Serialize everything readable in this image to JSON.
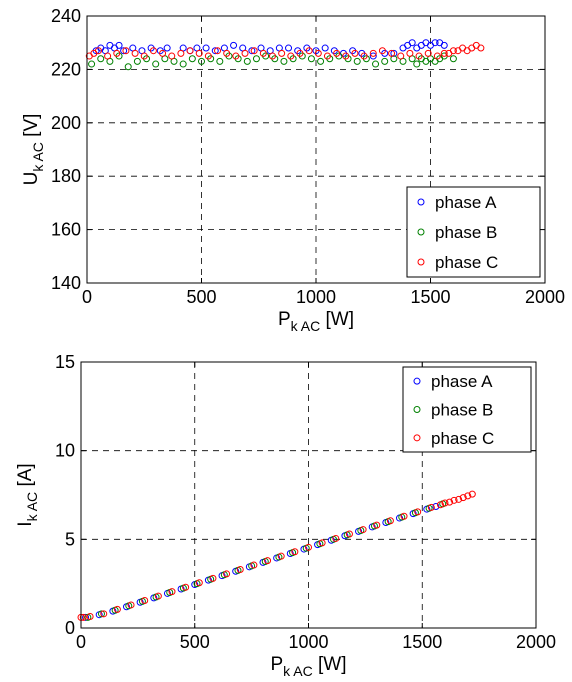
{
  "chart_data": [
    {
      "type": "scatter",
      "title": "",
      "xlabel": {
        "main": "P",
        "sub": "k AC",
        "unit": " [W]"
      },
      "ylabel": {
        "main": "U",
        "sub": "k AC",
        "unit": " [V]"
      },
      "xlim": [
        0,
        2000
      ],
      "ylim": [
        140,
        240
      ],
      "xticks": [
        "0",
        "500",
        "1000",
        "1500",
        "2000"
      ],
      "yticks": [
        "140",
        "160",
        "180",
        "200",
        "220",
        "240"
      ],
      "grid": true,
      "legend_position": "bottom-right",
      "series": [
        {
          "name": "phase A",
          "color": "#0000ff",
          "x": [
            40,
            60,
            80,
            100,
            120,
            140,
            160,
            200,
            240,
            280,
            320,
            350,
            420,
            450,
            480,
            520,
            560,
            600,
            640,
            680,
            720,
            760,
            800,
            840,
            880,
            920,
            960,
            1000,
            1040,
            1080,
            1120,
            1160,
            1200,
            1250,
            1300,
            1340,
            1380,
            1400,
            1420,
            1440,
            1460,
            1480,
            1500,
            1520,
            1540,
            1560
          ],
          "y": [
            227,
            228,
            227,
            229,
            228,
            229,
            227,
            228,
            227,
            228,
            227,
            228,
            228,
            227,
            228,
            228,
            227,
            228,
            229,
            228,
            227,
            228,
            227,
            228,
            228,
            227,
            228,
            227,
            228,
            227,
            226,
            227,
            226,
            225,
            226,
            226,
            228,
            229,
            230,
            228,
            229,
            230,
            229,
            230,
            230,
            229
          ]
        },
        {
          "name": "phase B",
          "color": "#008000",
          "x": [
            20,
            60,
            100,
            140,
            180,
            220,
            260,
            300,
            340,
            380,
            420,
            460,
            500,
            540,
            580,
            620,
            660,
            700,
            740,
            780,
            820,
            860,
            900,
            940,
            980,
            1020,
            1060,
            1100,
            1140,
            1180,
            1220,
            1260,
            1300,
            1340,
            1380,
            1420,
            1440,
            1460,
            1480,
            1500,
            1520,
            1540,
            1560,
            1600
          ],
          "y": [
            222,
            224,
            223,
            225,
            221,
            223,
            224,
            222,
            224,
            223,
            222,
            224,
            223,
            224,
            223,
            225,
            224,
            223,
            224,
            225,
            224,
            223,
            224,
            225,
            224,
            223,
            224,
            225,
            224,
            223,
            224,
            222,
            223,
            224,
            223,
            224,
            222,
            224,
            223,
            224,
            223,
            224,
            225,
            224
          ]
        },
        {
          "name": "phase C",
          "color": "#ff0000",
          "x": [
            10,
            30,
            50,
            90,
            130,
            170,
            210,
            250,
            290,
            330,
            370,
            410,
            450,
            490,
            530,
            570,
            610,
            650,
            690,
            730,
            770,
            810,
            850,
            890,
            930,
            970,
            1010,
            1050,
            1090,
            1130,
            1170,
            1210,
            1250,
            1290,
            1330,
            1370,
            1410,
            1450,
            1490,
            1530,
            1560,
            1580,
            1600,
            1620,
            1640,
            1660,
            1680,
            1700,
            1720
          ],
          "y": [
            225,
            226,
            227,
            225,
            226,
            227,
            226,
            225,
            227,
            226,
            225,
            226,
            227,
            226,
            225,
            227,
            226,
            225,
            226,
            227,
            226,
            225,
            226,
            225,
            226,
            227,
            226,
            225,
            226,
            225,
            226,
            225,
            226,
            227,
            226,
            225,
            226,
            225,
            226,
            225,
            226,
            226,
            227,
            227,
            228,
            227,
            228,
            229,
            228
          ]
        }
      ]
    },
    {
      "type": "scatter",
      "title": "",
      "xlabel": {
        "main": "P",
        "sub": "k AC",
        "unit": " [W]"
      },
      "ylabel": {
        "main": "I",
        "sub": "k AC",
        "unit": " [A]"
      },
      "xlim": [
        0,
        2000
      ],
      "ylim": [
        0,
        15
      ],
      "xticks": [
        "0",
        "500",
        "1000",
        "1500",
        "2000"
      ],
      "yticks": [
        "0",
        "5",
        "10",
        "15"
      ],
      "grid": true,
      "legend_position": "top-right",
      "series": [
        {
          "name": "phase A",
          "color": "#0000ff",
          "x": [
            20,
            80,
            140,
            200,
            260,
            320,
            380,
            440,
            500,
            560,
            620,
            680,
            740,
            800,
            860,
            920,
            980,
            1040,
            1100,
            1160,
            1220,
            1280,
            1340,
            1400,
            1460,
            1520,
            1560
          ],
          "y": [
            0.6,
            0.75,
            0.95,
            1.2,
            1.45,
            1.7,
            1.95,
            2.2,
            2.45,
            2.7,
            2.95,
            3.2,
            3.45,
            3.7,
            3.95,
            4.2,
            4.45,
            4.7,
            4.95,
            5.2,
            5.45,
            5.7,
            5.95,
            6.2,
            6.45,
            6.7,
            6.85
          ]
        },
        {
          "name": "phase B",
          "color": "#008000",
          "x": [
            30,
            90,
            150,
            210,
            270,
            330,
            390,
            450,
            510,
            570,
            630,
            690,
            750,
            810,
            870,
            930,
            990,
            1050,
            1110,
            1170,
            1230,
            1290,
            1350,
            1410,
            1470,
            1530,
            1590
          ],
          "y": [
            0.6,
            0.8,
            1.0,
            1.25,
            1.5,
            1.75,
            2.0,
            2.25,
            2.5,
            2.75,
            3.0,
            3.25,
            3.5,
            3.75,
            4.0,
            4.25,
            4.5,
            4.75,
            5.0,
            5.25,
            5.5,
            5.75,
            6.0,
            6.25,
            6.5,
            6.75,
            7.0
          ]
        },
        {
          "name": "phase C",
          "color": "#ff0000",
          "x": [
            0,
            10,
            40,
            100,
            160,
            220,
            280,
            340,
            400,
            460,
            520,
            580,
            640,
            700,
            760,
            820,
            880,
            940,
            1000,
            1060,
            1120,
            1180,
            1240,
            1300,
            1360,
            1420,
            1480,
            1540,
            1580,
            1600,
            1620,
            1640,
            1660,
            1680,
            1700,
            1720
          ],
          "y": [
            0.6,
            0.6,
            0.65,
            0.8,
            1.05,
            1.3,
            1.55,
            1.8,
            2.05,
            2.3,
            2.55,
            2.8,
            3.05,
            3.3,
            3.55,
            3.8,
            4.05,
            4.3,
            4.55,
            4.8,
            5.05,
            5.3,
            5.55,
            5.8,
            6.05,
            6.3,
            6.55,
            6.8,
            6.95,
            7.05,
            7.1,
            7.2,
            7.25,
            7.35,
            7.45,
            7.55
          ]
        }
      ]
    }
  ]
}
